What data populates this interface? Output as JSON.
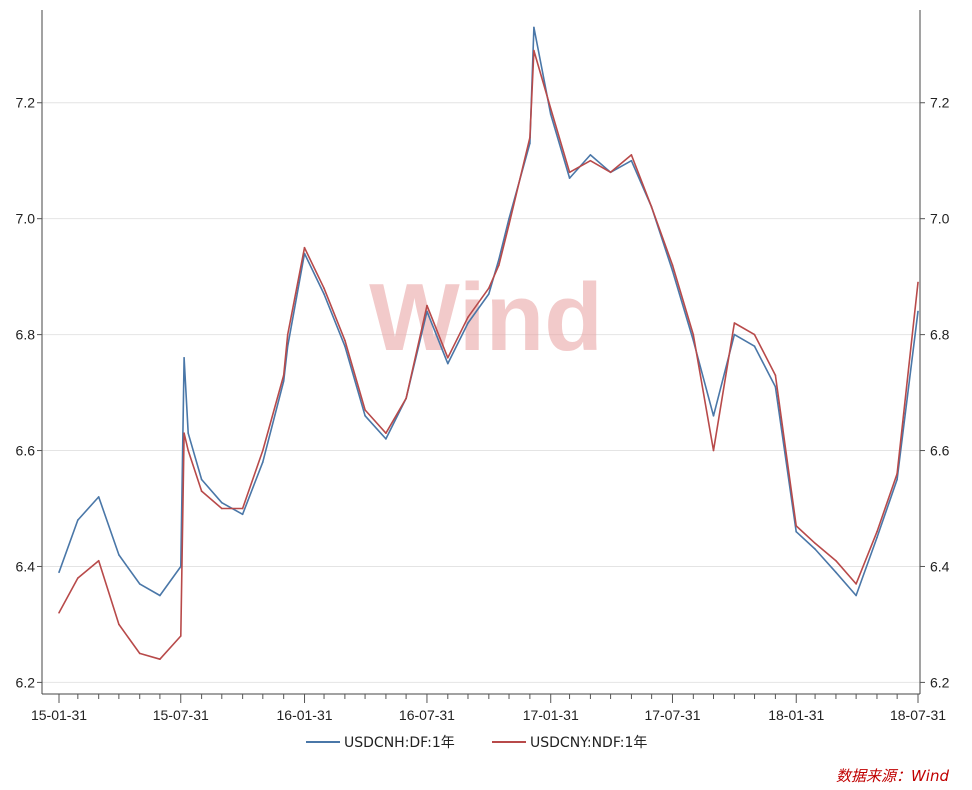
{
  "chart_data": {
    "type": "line",
    "title": "",
    "xlabel": "",
    "ylabel": "",
    "ylim": [
      6.18,
      7.36
    ],
    "yticks": [
      "6.2",
      "6.4",
      "6.6",
      "6.8",
      "7.0",
      "7.2"
    ],
    "xticks": [
      "15-01-31",
      "15-07-31",
      "16-01-31",
      "16-07-31",
      "17-01-31",
      "17-07-31",
      "18-01-31",
      "18-07-31"
    ],
    "grid": "horizontal",
    "legend_position": "bottom",
    "watermark": "Wind",
    "source": "数据来源：Wind",
    "series": [
      {
        "name": "USDCNH:DF:1年",
        "color": "#4a77a8",
        "x": [
          "2015-01-31",
          "2015-02-28",
          "2015-03-31",
          "2015-04-30",
          "2015-05-31",
          "2015-06-30",
          "2015-07-31",
          "2015-08-05",
          "2015-08-11",
          "2015-08-31",
          "2015-09-30",
          "2015-10-31",
          "2015-11-30",
          "2015-12-31",
          "2016-01-06",
          "2016-01-31",
          "2016-02-29",
          "2016-03-31",
          "2016-04-30",
          "2016-05-31",
          "2016-06-30",
          "2016-07-31",
          "2016-08-31",
          "2016-09-30",
          "2016-10-31",
          "2016-11-15",
          "2016-11-30",
          "2016-12-31",
          "2017-01-06",
          "2017-01-31",
          "2017-02-28",
          "2017-03-31",
          "2017-04-30",
          "2017-05-31",
          "2017-06-30",
          "2017-07-31",
          "2017-08-31",
          "2017-09-30",
          "2017-10-31",
          "2017-11-30",
          "2017-12-31",
          "2018-01-31",
          "2018-02-28",
          "2018-03-31",
          "2018-04-30",
          "2018-05-31",
          "2018-06-30",
          "2018-07-31"
        ],
        "values": [
          6.39,
          6.48,
          6.52,
          6.42,
          6.37,
          6.35,
          6.4,
          6.76,
          6.63,
          6.55,
          6.51,
          6.49,
          6.58,
          6.72,
          6.78,
          6.94,
          6.87,
          6.78,
          6.66,
          6.62,
          6.69,
          6.84,
          6.75,
          6.82,
          6.87,
          6.93,
          7.0,
          7.13,
          7.33,
          7.18,
          7.07,
          7.11,
          7.08,
          7.1,
          7.02,
          6.91,
          6.79,
          6.66,
          6.8,
          6.78,
          6.71,
          6.46,
          6.43,
          6.39,
          6.35,
          6.45,
          6.55,
          6.84
        ]
      },
      {
        "name": "USDCNY:NDF:1年",
        "color": "#b84a4a",
        "x": [
          "2015-01-31",
          "2015-02-28",
          "2015-03-31",
          "2015-04-30",
          "2015-05-31",
          "2015-06-30",
          "2015-07-31",
          "2015-08-05",
          "2015-08-11",
          "2015-08-31",
          "2015-09-30",
          "2015-10-31",
          "2015-11-30",
          "2015-12-31",
          "2016-01-06",
          "2016-01-31",
          "2016-02-29",
          "2016-03-31",
          "2016-04-30",
          "2016-05-31",
          "2016-06-30",
          "2016-07-31",
          "2016-08-31",
          "2016-09-30",
          "2016-10-31",
          "2016-11-15",
          "2016-11-30",
          "2016-12-31",
          "2017-01-06",
          "2017-01-31",
          "2017-02-28",
          "2017-03-31",
          "2017-04-30",
          "2017-05-31",
          "2017-06-30",
          "2017-07-31",
          "2017-08-31",
          "2017-09-30",
          "2017-10-31",
          "2017-11-30",
          "2017-12-31",
          "2018-01-31",
          "2018-02-28",
          "2018-03-31",
          "2018-04-30",
          "2018-05-31",
          "2018-06-30",
          "2018-07-31"
        ],
        "values": [
          6.32,
          6.38,
          6.41,
          6.3,
          6.25,
          6.24,
          6.28,
          6.63,
          6.6,
          6.53,
          6.5,
          6.5,
          6.6,
          6.73,
          6.8,
          6.95,
          6.88,
          6.79,
          6.67,
          6.63,
          6.69,
          6.85,
          6.76,
          6.83,
          6.88,
          6.92,
          6.99,
          7.14,
          7.29,
          7.19,
          7.08,
          7.1,
          7.08,
          7.11,
          7.02,
          6.92,
          6.8,
          6.6,
          6.82,
          6.8,
          6.73,
          6.47,
          6.44,
          6.41,
          6.37,
          6.46,
          6.56,
          6.89
        ]
      }
    ]
  }
}
